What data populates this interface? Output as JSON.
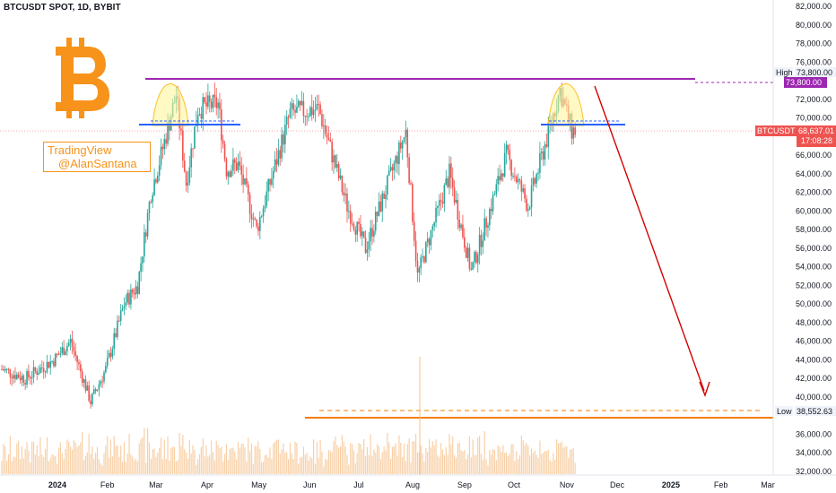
{
  "header": {
    "symbol": "BTCUSDT SPOT, 1D, BYBIT"
  },
  "watermark": {
    "line1": "TradingView",
    "line2": "@AlanSantana"
  },
  "price_axis": {
    "ticks": [
      "82,000.00",
      "80,000.00",
      "78,000.00",
      "76,000.00",
      "72,000.00",
      "70,000.00",
      "66,000.00",
      "64,000.00",
      "62,000.00",
      "60,000.00",
      "58,000.00",
      "56,000.00",
      "54,000.00",
      "52,000.00",
      "50,000.00",
      "48,000.00",
      "46,000.00",
      "44,000.00",
      "42,000.00",
      "40,000.00",
      "36,000.00",
      "34,000.00",
      "32,000.00"
    ],
    "high_label": "High",
    "high_value": "73,800.00",
    "high_value_2": "73,800.00",
    "current_label": "BTCUSDT",
    "current_price": "68,637.01",
    "countdown": "17:08:28",
    "low_label": "Low",
    "low_value": "38,552.63"
  },
  "time_axis": {
    "ticks": [
      {
        "label": "2024",
        "bold": true
      },
      {
        "label": "Feb",
        "bold": false
      },
      {
        "label": "Mar",
        "bold": false
      },
      {
        "label": "Apr",
        "bold": false
      },
      {
        "label": "May",
        "bold": false
      },
      {
        "label": "Jun",
        "bold": false
      },
      {
        "label": "Jul",
        "bold": false
      },
      {
        "label": "Aug",
        "bold": false
      },
      {
        "label": "Sep",
        "bold": false
      },
      {
        "label": "Oct",
        "bold": false
      },
      {
        "label": "Nov",
        "bold": false
      },
      {
        "label": "Dec",
        "bold": false
      },
      {
        "label": "2025",
        "bold": true
      },
      {
        "label": "Feb",
        "bold": false
      },
      {
        "label": "Mar",
        "bold": false
      }
    ]
  },
  "colors": {
    "bull": "#26a69a",
    "bear": "#ef5350",
    "resistance": "#9c27b0",
    "support_low": "#f57c00",
    "neckline": "#2962ff",
    "arrow": "#d50000",
    "bitcoin": "#f7931a",
    "volume": "#f5c08a"
  },
  "icons": {
    "logo": "bitcoin-icon"
  },
  "chart_data": {
    "type": "candlestick",
    "title": "BTCUSDT SPOT, 1D, BYBIT",
    "ylim": [
      32000,
      83000
    ],
    "y_axis": "price (USDT)",
    "x_range": [
      "2023-12-01",
      "2025-03-10"
    ],
    "high": 73800.0,
    "low": 38552.63,
    "last_price": 68637.01,
    "series": [
      {
        "name": "price_path",
        "x": [
          "2023-12-01",
          "2023-12-15",
          "2024-01-01",
          "2024-01-11",
          "2024-01-23",
          "2024-02-01",
          "2024-02-12",
          "2024-02-20",
          "2024-02-28",
          "2024-03-05",
          "2024-03-14",
          "2024-03-20",
          "2024-03-27",
          "2024-04-08",
          "2024-04-13",
          "2024-04-20",
          "2024-05-01",
          "2024-05-21",
          "2024-06-07",
          "2024-06-24",
          "2024-07-05",
          "2024-07-29",
          "2024-08-05",
          "2024-08-24",
          "2024-09-06",
          "2024-09-27",
          "2024-10-10",
          "2024-10-29",
          "2024-11-05"
        ],
        "y": [
          43000,
          42000,
          44000,
          46000,
          39500,
          43000,
          50000,
          52000,
          62000,
          66000,
          72500,
          63000,
          71000,
          71500,
          64500,
          65000,
          58000,
          70500,
          71000,
          60500,
          56000,
          68500,
          53000,
          64000,
          53500,
          66000,
          60500,
          73000,
          68637
        ]
      }
    ],
    "annotations": [
      "double top",
      "High 73,800.00",
      "Low 38,552.63"
    ]
  }
}
